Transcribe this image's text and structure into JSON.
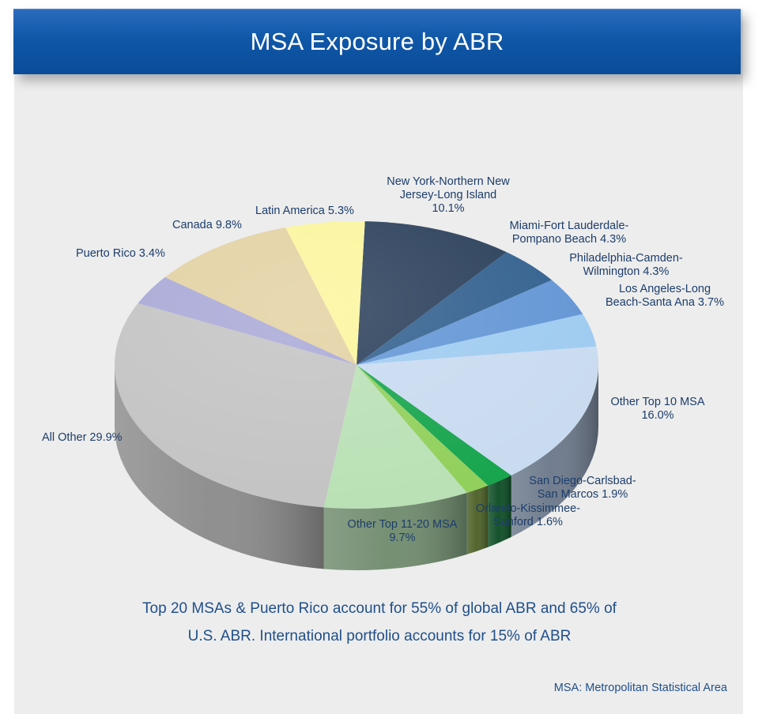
{
  "header": {
    "title": "MSA Exposure  by ABR"
  },
  "chart_data": {
    "type": "pie",
    "title": "MSA Exposure  by ABR",
    "slices": [
      {
        "label_lines": [
          "New York-Northern New",
          "Jersey-Long Island",
          "10.1%"
        ],
        "name": "New York-Northern New Jersey-Long Island",
        "value": 10.1,
        "color": "#253a56",
        "side_color": "#16263b"
      },
      {
        "label_lines": [
          "Miami-Fort Lauderdale-",
          "Pompano Beach 4.3%"
        ],
        "name": "Miami-Fort Lauderdale-Pompano Beach",
        "value": 4.3,
        "color": "#2d5c8c",
        "side_color": "#1d3e61"
      },
      {
        "label_lines": [
          "Philadelphia-Camden-",
          "Wilmington 4.3%"
        ],
        "name": "Philadelphia-Camden-Wilmington",
        "value": 4.3,
        "color": "#5f93d4",
        "side_color": "#3d6594"
      },
      {
        "label_lines": [
          "Los Angeles-Long",
          "Beach-Santa Ana 3.7%"
        ],
        "name": "Los Angeles-Long Beach-Santa Ana",
        "value": 3.7,
        "color": "#9ccaf0",
        "side_color": "#6f93ae"
      },
      {
        "label_lines": [
          "Other Top 10 MSA",
          "16.0%"
        ],
        "name": "Other Top 10 MSA",
        "value": 16.0,
        "color": "#c8daf0",
        "side_color": "#6a7789"
      },
      {
        "label_lines": [
          "San Diego-Carlsbad-",
          "San Marcos 1.9%"
        ],
        "name": "San Diego-Carlsbad-San Marcos",
        "value": 1.9,
        "color": "#13a34a",
        "side_color": "#0a4a22"
      },
      {
        "label_lines": [
          "Orlando-Kissimmee-",
          "Sanford 1.6%"
        ],
        "name": "Orlando-Kissimmee-Sanford",
        "value": 1.6,
        "color": "#8fcf58",
        "side_color": "#4a5e24"
      },
      {
        "label_lines": [
          "Other Top 11-20 MSA",
          "9.7%"
        ],
        "name": "Other Top 11-20 MSA",
        "value": 9.7,
        "color": "#b8e0b4",
        "side_color": "#6e8a6c"
      },
      {
        "label_lines": [
          "All Other 29.9%"
        ],
        "name": "All Other",
        "value": 29.9,
        "color": "#c2c2c2",
        "side_color": "#8a8a8a"
      },
      {
        "label_lines": [
          "Puerto Rico 3.4%"
        ],
        "name": "Puerto Rico",
        "value": 3.4,
        "color": "#a6a6d6",
        "side_color": "#6f6f96"
      },
      {
        "label_lines": [
          "Canada 9.8%"
        ],
        "name": "Canada",
        "value": 9.8,
        "color": "#e2d0a0",
        "side_color": "#9e916e"
      },
      {
        "label_lines": [
          "Latin America 5.3%"
        ],
        "name": "Latin America",
        "value": 5.3,
        "color": "#fbf59a",
        "side_color": "#b0aa68"
      }
    ]
  },
  "summary": {
    "line1": "Top 20 MSAs & Puerto Rico account for 55% of global ABR and 65% of",
    "line2": "U.S. ABR. International portfolio accounts for 15% of ABR"
  },
  "footnote": "MSA:  Metropolitan Statistical Area"
}
